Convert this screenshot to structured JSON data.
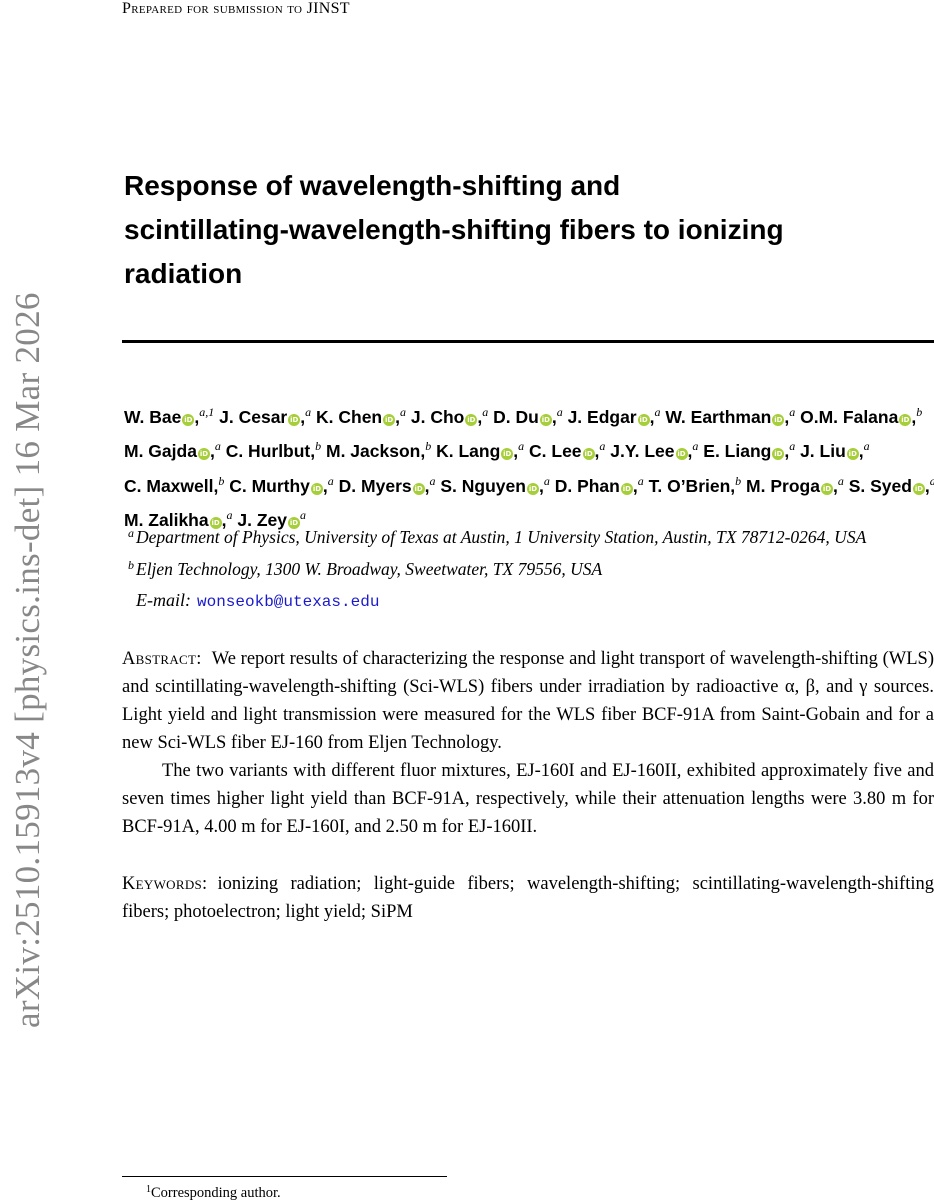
{
  "sidebar": {
    "arxiv_id": "arXiv:2510.15913v4  [physics.ins-det]  16 Mar 2026"
  },
  "header": {
    "text": "Prepared for submission to JINST"
  },
  "title": {
    "line1": "Response of wavelength-shifting and",
    "line2": "scintillating-wavelength-shifting fibers to ionizing",
    "line3": "radiation"
  },
  "authors": [
    {
      "name": "W. Bae",
      "affil": "a,1"
    },
    {
      "name": "J. Cesar",
      "affil": "a"
    },
    {
      "name": "K. Chen",
      "affil": "a"
    },
    {
      "name": "J. Cho",
      "affil": "a"
    },
    {
      "name": "D. Du",
      "affil": "a"
    },
    {
      "name": "J. Edgar",
      "affil": "a"
    },
    {
      "name": "W. Earthman",
      "affil": "a"
    },
    {
      "name": "O.M. Falana",
      "affil": "b"
    },
    {
      "name": "M. Gajda",
      "affil": "a"
    },
    {
      "name": "C. Hurlbut,",
      "affil": "b"
    },
    {
      "name": "M. Jackson,",
      "affil": "b"
    },
    {
      "name": "K. Lang",
      "affil": "a"
    },
    {
      "name": "C. Lee",
      "affil": "a"
    },
    {
      "name": "J.Y. Lee",
      "affil": "a"
    },
    {
      "name": "E. Liang",
      "affil": "a"
    },
    {
      "name": "J. Liu",
      "affil": "a"
    },
    {
      "name": "C. Maxwell,",
      "affil": "b"
    },
    {
      "name": "C. Murthy",
      "affil": "a"
    },
    {
      "name": "D. Myers",
      "affil": "a"
    },
    {
      "name": "S. Nguyen",
      "affil": "a"
    },
    {
      "name": "D. Phan",
      "affil": "a"
    },
    {
      "name": "T. O’Brien,",
      "affil": "b"
    },
    {
      "name": "M. Proga",
      "affil": "a"
    },
    {
      "name": "S. Syed",
      "affil": "a"
    },
    {
      "name": "M. Zalikha",
      "affil": "a"
    },
    {
      "name": "J. Zey",
      "affil": "a"
    }
  ],
  "orcid_icon": {
    "icon": "orcid-icon",
    "glyph": "iD",
    "color": "#a6ce39"
  },
  "affiliations": [
    {
      "mark": "a",
      "text": "Department of Physics, University of Texas at Austin, 1 University Station, Austin, TX 78712-0264, USA"
    },
    {
      "mark": "b",
      "text": "Eljen Technology, 1300 W. Broadway, Sweetwater, TX 79556, USA"
    }
  ],
  "email": {
    "label": "E-mail:",
    "address": "wonseokb@utexas.edu"
  },
  "abstract": {
    "label": "Abstract:",
    "p1": "We report results of characterizing the response and light transport of wavelength-shifting (WLS) and scintillating-wavelength-shifting (Sci-WLS) fibers under irradiation by radioactive α, β, and γ sources. Light yield and light transmission were measured for the WLS fiber BCF-91A from Saint-Gobain and for a new Sci-WLS fiber EJ-160 from Eljen Technology.",
    "p2": "The two variants with different fluor mixtures, EJ-160I and EJ-160II, exhibited approximately five and seven times higher light yield than BCF-91A, respectively, while their attenuation lengths were 3.80 m for BCF-91A, 4.00 m for EJ-160I, and 2.50 m for EJ-160II."
  },
  "keywords": {
    "label": "Keywords:",
    "text": "ionizing radiation; light-guide fibers; wavelength-shifting; scintillating-wavelength-shifting fibers; photoelectron; light yield; SiPM"
  },
  "footnote": {
    "mark": "1",
    "text": "Corresponding author."
  }
}
